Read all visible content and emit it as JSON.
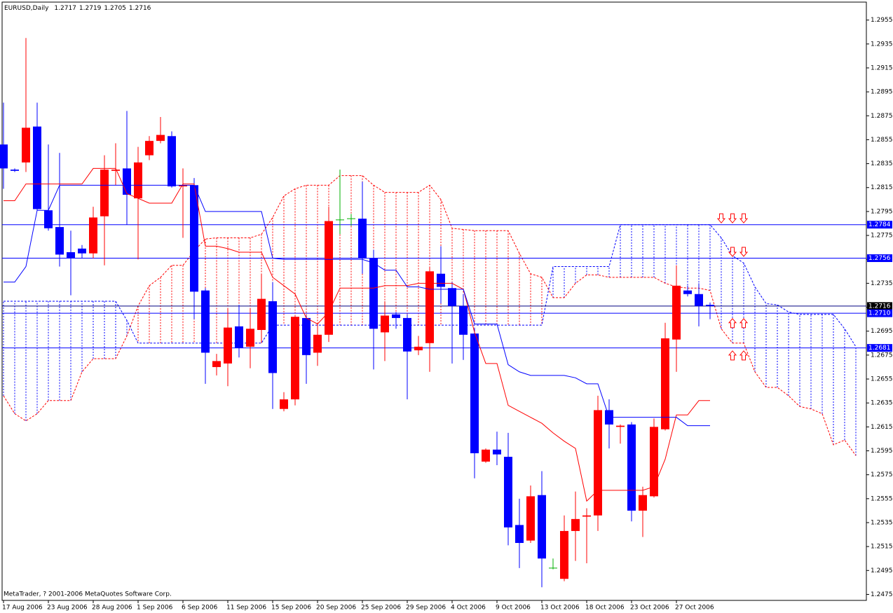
{
  "chart_data": {
    "type": "candlestick",
    "title": "EURUSD,Daily",
    "footer": "MetaTrader, ? 2001-2006 MetaQuotes Software Corp.",
    "categories": [
      "17 Aug 2006",
      null,
      null,
      null,
      "23 Aug 2006",
      null,
      null,
      null,
      "28 Aug 2006",
      null,
      null,
      null,
      "1 Sep 2006",
      null,
      null,
      null,
      "6 Sep 2006",
      null,
      null,
      null,
      "11 Sep 2006",
      null,
      null,
      null,
      "15 Sep 2006",
      null,
      null,
      null,
      "20 Sep 2006",
      null,
      null,
      null,
      "25 Sep 2006",
      null,
      null,
      null,
      "29 Sep 2006",
      null,
      null,
      null,
      "4 Oct 2006",
      null,
      null,
      null,
      "9 Oct 2006",
      null,
      null,
      null,
      "13 Oct 2006",
      null,
      null,
      null,
      "18 Oct 2006",
      null,
      null,
      null,
      "23 Oct 2006",
      null,
      null,
      null,
      "27 Oct 2006",
      null,
      null,
      null,
      null,
      null,
      null,
      null,
      null,
      null,
      null,
      null,
      null,
      null,
      null,
      null,
      null
    ],
    "open": [
      1.2851,
      1.283,
      1.2836,
      1.2866,
      1.2796,
      1.2782,
      1.2761,
      1.2764,
      1.276,
      1.2791,
      1.2829,
      1.2831,
      1.2806,
      1.2842,
      1.2854,
      1.2858,
      1.2816,
      1.2817,
      1.2729,
      1.2665,
      1.2668,
      1.2699,
      1.2682,
      1.2696,
      1.272,
      1.263,
      1.2638,
      1.2706,
      1.2677,
      1.2692,
      1.2788,
      1.2789,
      1.2789,
      1.2756,
      1.2694,
      1.2709,
      1.2706,
      1.2679,
      1.2685,
      1.2743,
      1.2731,
      1.2716,
      1.2693,
      1.2586,
      1.2596,
      1.259,
      1.2533,
      1.252,
      1.2558,
      1.2497,
      1.2488,
      1.2528,
      1.254,
      1.2541,
      1.2629,
      1.2615,
      1.2617,
      1.2545,
      1.2557,
      1.2613,
      1.2688,
      1.2729,
      1.2726,
      1.2717,
      null,
      null,
      null,
      null,
      null,
      null,
      null,
      null,
      null,
      null,
      null,
      null,
      null
    ],
    "high": [
      1.2886,
      1.2831,
      1.294,
      1.2886,
      1.2851,
      1.2844,
      1.2779,
      1.2767,
      1.2799,
      1.2842,
      1.2852,
      1.2879,
      1.2849,
      1.2858,
      1.2874,
      1.2862,
      1.2831,
      1.2823,
      1.2731,
      1.2676,
      1.2714,
      1.2717,
      1.2714,
      1.2743,
      1.2736,
      1.2644,
      1.2708,
      1.2708,
      1.2702,
      1.2799,
      1.283,
      1.2793,
      1.282,
      1.2763,
      1.272,
      1.2711,
      1.2709,
      1.2691,
      1.2749,
      1.2766,
      1.2736,
      1.2726,
      1.2698,
      1.2597,
      1.2611,
      1.261,
      1.2555,
      1.2566,
      1.2578,
      1.2505,
      1.2541,
      1.2561,
      1.2547,
      1.2641,
      1.2638,
      1.2617,
      1.2619,
      1.2565,
      1.2622,
      1.2702,
      1.275,
      1.2733,
      1.2735,
      1.2719,
      null,
      null,
      null,
      null,
      null,
      null,
      null,
      null,
      null,
      null,
      null,
      null,
      null
    ],
    "low": [
      1.2814,
      1.2828,
      1.2828,
      1.2796,
      1.2779,
      1.2749,
      1.2725,
      1.2756,
      1.2756,
      1.275,
      1.2817,
      1.2784,
      1.2755,
      1.2838,
      1.2852,
      1.2815,
      1.2773,
      1.2705,
      1.2651,
      1.2658,
      1.2649,
      1.2673,
      1.2664,
      1.2685,
      1.263,
      1.2628,
      1.2633,
      1.2651,
      1.2666,
      1.2686,
      1.2776,
      1.2783,
      1.2743,
      1.2663,
      1.267,
      1.2697,
      1.2638,
      1.2675,
      1.2661,
      1.2718,
      1.2668,
      1.2671,
      1.2572,
      1.2585,
      1.2583,
      1.2516,
      1.2497,
      1.2518,
      1.2481,
      1.2496,
      1.2486,
      1.2503,
      1.2501,
      1.2528,
      1.2597,
      1.2601,
      1.2536,
      1.2523,
      1.2556,
      1.2612,
      1.2661,
      1.2724,
      1.2699,
      1.2705,
      null,
      null,
      null,
      null,
      null,
      null,
      null,
      null,
      null,
      null,
      null,
      null,
      null
    ],
    "close": [
      1.2831,
      1.2829,
      1.2865,
      1.2797,
      1.2781,
      1.2759,
      1.2756,
      1.276,
      1.279,
      1.283,
      1.283,
      1.2809,
      1.2836,
      1.2854,
      1.2859,
      1.2816,
      1.2817,
      1.2728,
      1.2677,
      1.267,
      1.2698,
      1.2681,
      1.2697,
      1.2722,
      1.266,
      1.2638,
      1.2707,
      1.2675,
      1.2692,
      1.2787,
      1.2788,
      1.2789,
      1.2756,
      1.2697,
      1.2708,
      1.2706,
      1.2678,
      1.2682,
      1.2745,
      1.2732,
      1.2716,
      1.2692,
      1.2593,
      1.2596,
      1.2592,
      1.2531,
      1.2518,
      1.2557,
      1.2505,
      1.2497,
      1.2528,
      1.2538,
      1.2541,
      1.2629,
      1.2617,
      1.2616,
      1.2545,
      1.2558,
      1.2615,
      1.2689,
      1.2733,
      1.2726,
      1.2716,
      1.2716,
      null,
      null,
      null,
      null,
      null,
      null,
      null,
      null,
      null,
      null,
      null,
      null,
      null
    ],
    "up_color": "#ff0000",
    "down_color": "#0000ff",
    "doji_color": "#00b000",
    "lines": [
      {
        "color": "#ff0000",
        "values": [
          1.2804,
          1.2804,
          1.2818,
          1.2818,
          1.2818,
          1.2818,
          1.2818,
          1.2818,
          1.2831,
          1.2831,
          1.2831,
          1.281,
          1.2806,
          1.2802,
          1.2802,
          1.2802,
          1.2818,
          1.2818,
          1.2766,
          1.2766,
          1.2764,
          1.2761,
          1.2761,
          1.2761,
          1.274,
          1.2733,
          1.2726,
          1.2706,
          1.2701,
          1.2711,
          1.2731,
          1.2731,
          1.2731,
          1.2731,
          1.2733,
          1.2733,
          1.2733,
          1.2735,
          1.2735,
          1.2735,
          1.2735,
          1.273,
          1.2694,
          1.2668,
          1.2668,
          1.2633,
          1.2628,
          1.2623,
          1.2618,
          1.261,
          1.2603,
          1.2597,
          1.2553,
          1.2562,
          1.2562,
          1.2562,
          1.2562,
          1.2562,
          1.2565,
          1.2588,
          1.2625,
          1.2625,
          1.2637,
          1.2637,
          null,
          null,
          null,
          null,
          null,
          null,
          null,
          null,
          null,
          null,
          null,
          null,
          null
        ]
      },
      {
        "color": "#0000ff",
        "values": [
          1.2736,
          1.2736,
          1.2749,
          1.2796,
          1.2796,
          1.2817,
          1.2817,
          1.2817,
          1.2817,
          1.2817,
          1.2817,
          1.2817,
          1.2817,
          1.2817,
          1.2817,
          1.2817,
          1.2817,
          1.2817,
          1.2795,
          1.2795,
          1.2795,
          1.2795,
          1.2795,
          1.2795,
          1.2756,
          1.2755,
          1.2755,
          1.2755,
          1.2755,
          1.2755,
          1.2755,
          1.2755,
          1.2755,
          1.2752,
          1.2746,
          1.2746,
          1.2732,
          1.2732,
          1.273,
          1.273,
          1.273,
          1.273,
          1.2701,
          1.2701,
          1.2701,
          1.2667,
          1.2661,
          1.2658,
          1.2658,
          1.2658,
          1.2658,
          1.2656,
          1.2651,
          1.2651,
          1.2623,
          1.2623,
          1.2623,
          1.2623,
          1.2623,
          1.2623,
          1.2623,
          1.2616,
          1.2616,
          1.2616,
          null,
          null,
          null,
          null,
          null,
          null,
          null,
          null,
          null,
          null,
          null,
          null,
          null
        ]
      }
    ],
    "cloud": [
      {
        "color": "#ff0000",
        "values": [
          1.2641,
          1.2626,
          1.262,
          1.2626,
          1.2637,
          1.2637,
          1.2637,
          1.2661,
          1.2672,
          1.2672,
          1.2672,
          1.2691,
          1.2716,
          1.2733,
          1.274,
          1.275,
          1.275,
          1.2762,
          1.2772,
          1.2773,
          1.2773,
          1.2773,
          1.2773,
          1.2776,
          1.279,
          1.2808,
          1.2814,
          1.2817,
          1.2817,
          1.2817,
          1.2825,
          1.2825,
          1.2825,
          1.2817,
          1.2811,
          1.2811,
          1.2811,
          1.2811,
          1.2817,
          1.2805,
          1.2781,
          1.278,
          1.2779,
          1.2779,
          1.2779,
          1.2779,
          1.276,
          1.2743,
          1.274,
          1.2723,
          1.2723,
          1.2735,
          1.2742,
          1.2742,
          1.274,
          1.274,
          1.274,
          1.274,
          1.274,
          1.2735,
          1.2732,
          1.2731,
          1.2731,
          1.2729,
          1.2697,
          1.2685,
          1.2685,
          1.2661,
          1.2648,
          1.2648,
          1.2641,
          1.2632,
          1.263,
          1.2626,
          1.26,
          1.2604,
          1.2591
        ]
      },
      {
        "color": "#0000ff",
        "values": [
          1.272,
          1.272,
          1.272,
          1.272,
          1.272,
          1.272,
          1.272,
          1.272,
          1.272,
          1.272,
          1.272,
          1.2704,
          1.2685,
          1.2685,
          1.2685,
          1.2685,
          1.2685,
          1.2685,
          1.2685,
          1.2685,
          1.2685,
          1.2685,
          1.2685,
          1.2685,
          1.27,
          1.27,
          1.27,
          1.27,
          1.27,
          1.27,
          1.27,
          1.27,
          1.27,
          1.27,
          1.27,
          1.27,
          1.27,
          1.27,
          1.27,
          1.27,
          1.27,
          1.27,
          1.27,
          1.27,
          1.27,
          1.27,
          1.27,
          1.27,
          1.27,
          1.2749,
          1.2749,
          1.2749,
          1.2749,
          1.2749,
          1.2749,
          1.2784,
          1.2784,
          1.2784,
          1.2784,
          1.2784,
          1.2784,
          1.2784,
          1.2784,
          1.2784,
          1.2773,
          1.2758,
          1.2752,
          1.2732,
          1.2718,
          1.2717,
          1.2711,
          1.2709,
          1.2709,
          1.2709,
          1.2709,
          1.2697,
          1.2682
        ]
      }
    ],
    "levels": [
      1.2784,
      1.2756,
      1.2716,
      {
        "value": 1.271,
        "label": "1.2710"
      },
      1.2681
    ],
    "level_colors": [
      "#0000ff",
      "#0000ff",
      "#000080",
      "#0000ff",
      "#0000ff"
    ],
    "level_label_colors": [
      "#0000ff",
      "#0000ff",
      "#000000",
      "#0000ff",
      "#0000ff"
    ],
    "arrows": [
      {
        "index": 64,
        "price": 1.2789,
        "dir": "down"
      },
      {
        "index": 65,
        "price": 1.2789,
        "dir": "down"
      },
      {
        "index": 66,
        "price": 1.2789,
        "dir": "down"
      },
      {
        "index": 65,
        "price": 1.2761,
        "dir": "down"
      },
      {
        "index": 66,
        "price": 1.2761,
        "dir": "down"
      },
      {
        "index": 65,
        "price": 1.2702,
        "dir": "up"
      },
      {
        "index": 66,
        "price": 1.2702,
        "dir": "up"
      },
      {
        "index": 65,
        "price": 1.2675,
        "dir": "up"
      },
      {
        "index": 66,
        "price": 1.2675,
        "dir": "up"
      }
    ],
    "arrow_color": "#ff0000",
    "ylim": [
      1.247,
      1.297
    ],
    "yticks": [
      1.2955,
      1.2935,
      1.2915,
      1.2895,
      1.2875,
      1.2855,
      1.2835,
      1.2815,
      1.2795,
      1.2775,
      1.2755,
      1.2735,
      1.2715,
      1.2695,
      1.2675,
      1.2655,
      1.2635,
      1.2615,
      1.2595,
      1.2575,
      1.2555,
      1.2535,
      1.2515,
      1.2495,
      1.2475
    ],
    "grid": false
  }
}
